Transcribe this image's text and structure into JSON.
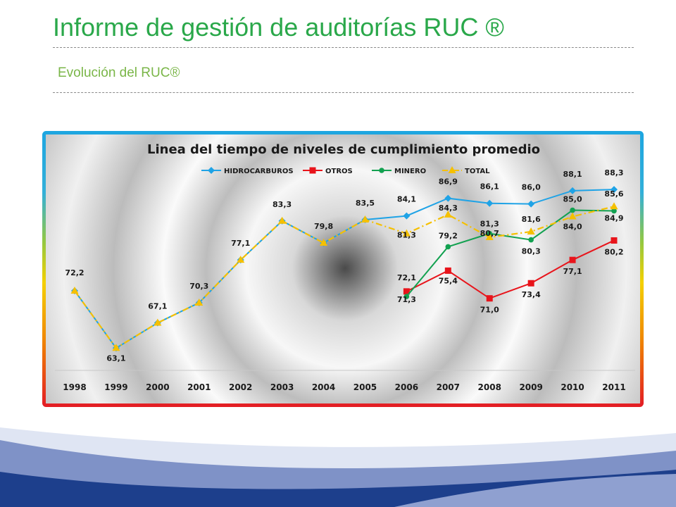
{
  "slide": {
    "title": "Informe de gestión de auditorías RUC ®",
    "subtitle": "Evolución del RUC®"
  },
  "colors": {
    "title": "#2aa84a",
    "subtitle": "#7ab648",
    "hidrocarburos": "#1fa3e6",
    "otros": "#e8141b",
    "minero": "#12a150",
    "total": "#f5c000",
    "deco_dark": "#1d3f8c",
    "deco_light": "#7f92c7"
  },
  "chart_data": {
    "type": "line",
    "title": "Linea del tiempo de niveles de cumplimiento promedio",
    "legend_position": "top",
    "grid": false,
    "categories": [
      "1998",
      "1999",
      "2000",
      "2001",
      "2002",
      "2003",
      "2004",
      "2005",
      "2006",
      "2007",
      "2008",
      "2009",
      "2010",
      "2011"
    ],
    "ylim": [
      60,
      92
    ],
    "series": [
      {
        "name": "HIDROCARBUROS",
        "key": "hidrocarburos",
        "marker": "diamond",
        "dash": false,
        "values": [
          72.2,
          63.1,
          67.1,
          70.3,
          77.1,
          83.3,
          79.8,
          83.5,
          84.1,
          86.9,
          86.1,
          86.0,
          88.1,
          88.3
        ],
        "labels": [
          "72,2",
          "63,1",
          "67,1",
          "70,3",
          "77,1",
          "83,3",
          "79,8",
          "83,5",
          "84,1",
          "86,9",
          "86,1",
          "86,0",
          "88,1",
          "88,3"
        ]
      },
      {
        "name": "OTROS",
        "key": "otros",
        "marker": "square",
        "dash": false,
        "values": [
          null,
          null,
          null,
          null,
          null,
          null,
          null,
          null,
          72.1,
          75.4,
          71.0,
          73.4,
          77.1,
          80.2
        ],
        "labels": [
          "",
          "",
          "",
          "",
          "",
          "",
          "",
          "",
          "72,1",
          "75,4",
          "71,0",
          "73,4",
          "77,1",
          "80,2"
        ]
      },
      {
        "name": "MINERO",
        "key": "minero",
        "marker": "circle",
        "dash": false,
        "values": [
          null,
          null,
          null,
          null,
          null,
          null,
          null,
          null,
          71.3,
          79.2,
          81.3,
          80.3,
          85.0,
          84.9
        ],
        "labels": [
          "",
          "",
          "",
          "",
          "",
          "",
          "",
          "",
          "71,3",
          "79,2",
          "81,3",
          "80,3",
          "85,0",
          "84,9"
        ]
      },
      {
        "name": "TOTAL",
        "key": "total",
        "marker": "triangle",
        "dash": true,
        "values": [
          72.2,
          63.1,
          67.1,
          70.3,
          77.1,
          83.3,
          79.8,
          83.5,
          81.3,
          84.3,
          80.7,
          81.6,
          84.0,
          85.6
        ],
        "labels": [
          "",
          "",
          "",
          "",
          "",
          "",
          "",
          "",
          "81,3",
          "84,3",
          "80,7",
          "81,6",
          "84,0",
          "85,6"
        ]
      }
    ]
  }
}
